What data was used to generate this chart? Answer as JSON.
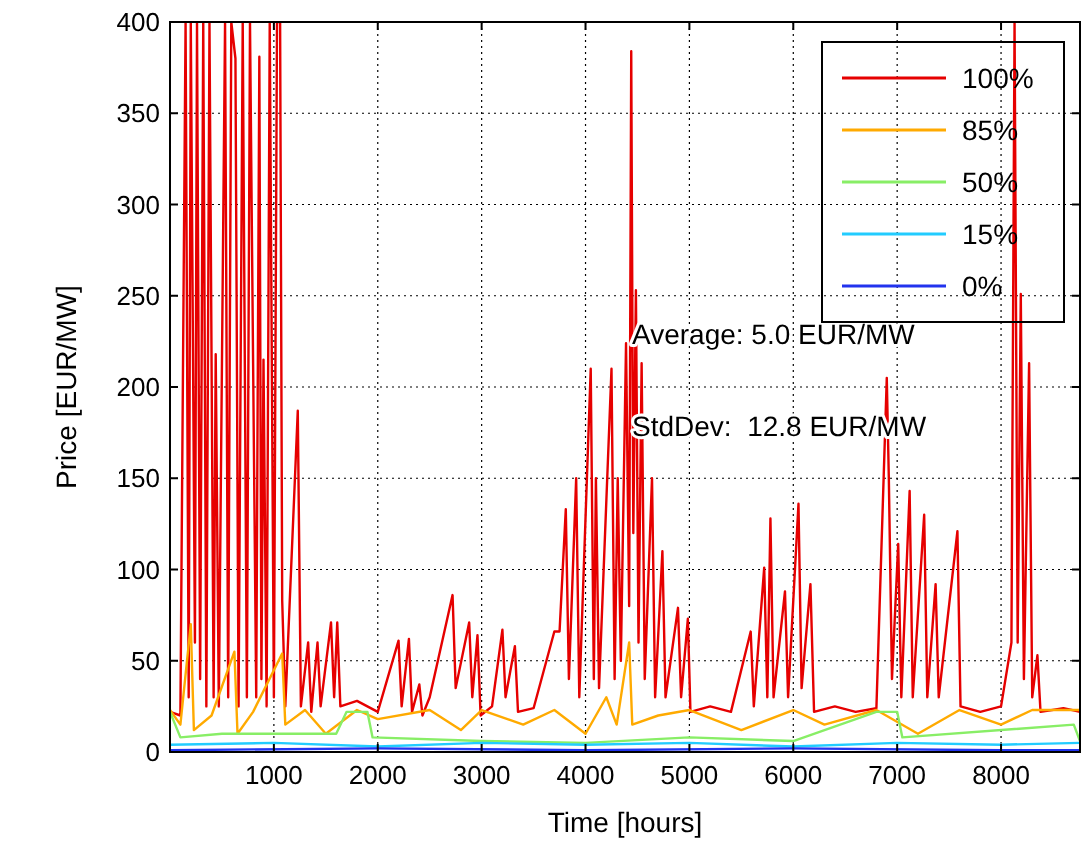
{
  "chart_data": {
    "type": "line",
    "xlabel": "Time [hours]",
    "ylabel": "Price [EUR/MW]",
    "xlim": [
      0,
      8760
    ],
    "xticks": [
      1000,
      2000,
      3000,
      4000,
      5000,
      6000,
      7000,
      8000
    ],
    "ylim": [
      0,
      400
    ],
    "yticks": [
      0,
      50,
      100,
      150,
      200,
      250,
      300,
      350,
      400
    ],
    "grid": true,
    "legend": "top right",
    "annotations": [
      "Average: 5.0 EUR/MW",
      "StdDev:  12.8 EUR/MW"
    ],
    "series": [
      {
        "name": "100%",
        "color": "#e60000",
        "x": [
          0,
          100,
          150,
          180,
          200,
          240,
          260,
          290,
          320,
          350,
          380,
          420,
          440,
          470,
          530,
          560,
          590,
          630,
          660,
          700,
          740,
          770,
          800,
          830,
          860,
          880,
          900,
          930,
          960,
          1000,
          1030,
          1060,
          1080,
          1110,
          1230,
          1260,
          1330,
          1360,
          1420,
          1450,
          1550,
          1580,
          1610,
          1640,
          1800,
          1900,
          2000,
          2200,
          2230,
          2300,
          2330,
          2400,
          2430,
          2500,
          2720,
          2750,
          2880,
          2910,
          2960,
          2990,
          3100,
          3200,
          3230,
          3320,
          3350,
          3500,
          3700,
          3750,
          3810,
          3840,
          3910,
          3940,
          4050,
          4080,
          4100,
          4130,
          4250,
          4280,
          4310,
          4340,
          4390,
          4420,
          4440,
          4460,
          4485,
          4510,
          4540,
          4570,
          4640,
          4670,
          4740,
          4770,
          4890,
          4920,
          4985,
          5010,
          5200,
          5400,
          5590,
          5620,
          5720,
          5750,
          5780,
          5810,
          5920,
          5950,
          6050,
          6080,
          6165,
          6200,
          6400,
          6600,
          6800,
          6900,
          6920,
          6950,
          7010,
          7040,
          7120,
          7150,
          7260,
          7290,
          7370,
          7400,
          7580,
          7610,
          7800,
          8000,
          8100,
          8130,
          8160,
          8190,
          8220,
          8270,
          8300,
          8350,
          8380,
          8600,
          8760
        ],
        "values": [
          22,
          20,
          400,
          30,
          400,
          60,
          400,
          40,
          400,
          25,
          400,
          30,
          218,
          25,
          400,
          30,
          400,
          380,
          25,
          400,
          30,
          400,
          213,
          30,
          381,
          40,
          215,
          25,
          400,
          30,
          400,
          400,
          83,
          25,
          187,
          25,
          60,
          22,
          60,
          25,
          71,
          30,
          71,
          25,
          28,
          25,
          22,
          61,
          25,
          62,
          22,
          37,
          20,
          30,
          86,
          35,
          71,
          30,
          64,
          20,
          25,
          67,
          30,
          58,
          22,
          24,
          66,
          66,
          133,
          40,
          150,
          30,
          210,
          40,
          150,
          35,
          210,
          40,
          150,
          50,
          224,
          80,
          384,
          120,
          253,
          60,
          213,
          40,
          150,
          30,
          110,
          30,
          79,
          30,
          73,
          22,
          25,
          22,
          66,
          25,
          101,
          30,
          128,
          30,
          88,
          30,
          136,
          35,
          92,
          22,
          25,
          22,
          24,
          205,
          149,
          40,
          114,
          30,
          143,
          30,
          130,
          30,
          92,
          30,
          121,
          25,
          22,
          25,
          60,
          400,
          60,
          251,
          40,
          213,
          30,
          53,
          22,
          24,
          22
        ]
      },
      {
        "name": "85%",
        "color": "#ffaa00",
        "x": [
          0,
          100,
          200,
          230,
          400,
          620,
          650,
          800,
          1080,
          1110,
          1300,
          1500,
          1800,
          2000,
          2500,
          2800,
          3000,
          3400,
          3700,
          4000,
          4200,
          4300,
          4420,
          4450,
          4700,
          5000,
          5500,
          6000,
          6300,
          6800,
          7200,
          7600,
          8000,
          8300,
          8760
        ],
        "values": [
          23,
          15,
          70,
          12,
          20,
          55,
          10,
          22,
          54,
          15,
          23,
          10,
          23,
          18,
          23,
          12,
          23,
          15,
          23,
          10,
          30,
          15,
          60,
          15,
          20,
          23,
          12,
          23,
          15,
          23,
          10,
          23,
          15,
          23,
          23
        ]
      },
      {
        "name": "50%",
        "color": "#88ee66",
        "x": [
          0,
          100,
          500,
          1600,
          1700,
          1900,
          1950,
          3000,
          4000,
          5000,
          6000,
          6800,
          7000,
          7050,
          8700,
          8760
        ],
        "values": [
          22,
          8,
          10,
          10,
          22,
          22,
          8,
          6,
          5,
          8,
          6,
          22,
          22,
          8,
          15,
          6
        ]
      },
      {
        "name": "15%",
        "color": "#22ccff",
        "x": [
          0,
          1000,
          2000,
          3000,
          4000,
          5000,
          6000,
          7000,
          8000,
          8760
        ],
        "values": [
          4,
          5,
          3,
          5,
          4,
          5,
          3,
          5,
          4,
          5
        ]
      },
      {
        "name": "0%",
        "color": "#2233ee",
        "x": [
          0,
          2000,
          4000,
          6000,
          8000,
          8760
        ],
        "values": [
          1,
          2,
          1,
          2,
          1,
          1
        ]
      }
    ]
  }
}
